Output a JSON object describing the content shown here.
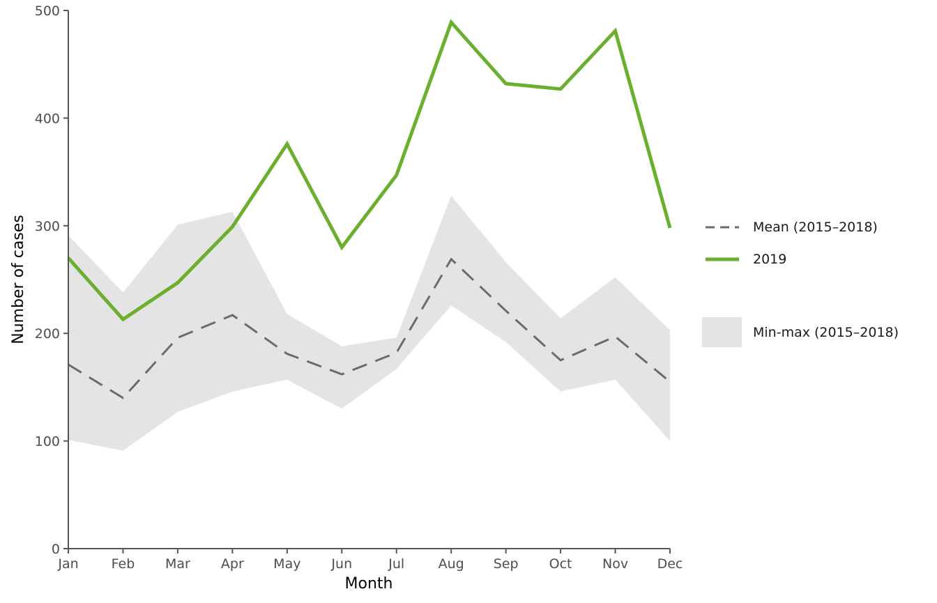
{
  "chart_data": {
    "type": "line",
    "title": "",
    "xlabel": "Month",
    "ylabel": "Number of cases",
    "categories": [
      "Jan",
      "Feb",
      "Mar",
      "Apr",
      "May",
      "Jun",
      "Jul",
      "Aug",
      "Sep",
      "Oct",
      "Nov",
      "Dec"
    ],
    "ylim": [
      0,
      500
    ],
    "yticks": [
      0,
      100,
      200,
      300,
      400,
      500
    ],
    "grid": false,
    "legend_position": "right",
    "band": {
      "name": "Min-max (2015–2018)",
      "min": [
        101,
        91,
        127,
        146,
        157,
        130,
        167,
        226,
        192,
        146,
        157,
        100
      ],
      "max": [
        291,
        238,
        301,
        313,
        218,
        188,
        196,
        328,
        266,
        214,
        252,
        203
      ],
      "color": "#e4e4e4"
    },
    "series": [
      {
        "name": "Mean (2015–2018)",
        "values": [
          171,
          140,
          196,
          217,
          181,
          162,
          182,
          269,
          221,
          175,
          197,
          155
        ],
        "color": "#6b6b6b",
        "style": "dashed"
      },
      {
        "name": "2019",
        "values": [
          270,
          213,
          247,
          299,
          376,
          280,
          347,
          489,
          432,
          427,
          481,
          298
        ],
        "color": "#6ab02e",
        "style": "solid"
      }
    ]
  }
}
